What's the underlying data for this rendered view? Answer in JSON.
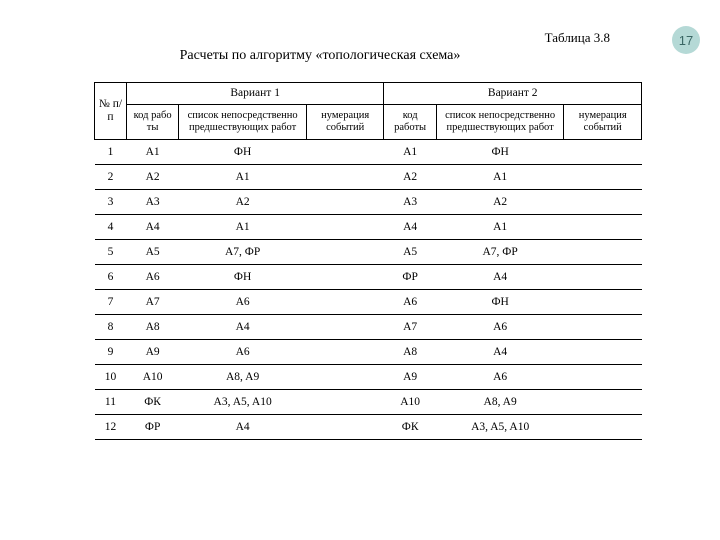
{
  "page_number": "17",
  "table_label": "Таблица 3.8",
  "table_title": "Расчеты по алгоритму «топологическая схема»",
  "header": {
    "num": "№ п/п",
    "variant1": "Вариант 1",
    "variant2": "Вариант 2",
    "code": "код рабо ты",
    "code2": "код работы",
    "preds": "список непосредственно предшествующих работ",
    "events": "нумерация событий"
  },
  "rows": [
    {
      "n": "1",
      "c1": "A1",
      "p1": "ФН",
      "e1": "",
      "c2": "A1",
      "p2": "ФН",
      "e2": ""
    },
    {
      "n": "2",
      "c1": "A2",
      "p1": "A1",
      "e1": "",
      "c2": "A2",
      "p2": "A1",
      "e2": ""
    },
    {
      "n": "3",
      "c1": "A3",
      "p1": "A2",
      "e1": "",
      "c2": "A3",
      "p2": "A2",
      "e2": ""
    },
    {
      "n": "4",
      "c1": "A4",
      "p1": "A1",
      "e1": "",
      "c2": "A4",
      "p2": "A1",
      "e2": ""
    },
    {
      "n": "5",
      "c1": "A5",
      "p1": "A7, ФР",
      "e1": "",
      "c2": "A5",
      "p2": "A7, ФР",
      "e2": ""
    },
    {
      "n": "6",
      "c1": "A6",
      "p1": "ФН",
      "e1": "",
      "c2": "ФР",
      "p2": "A4",
      "e2": ""
    },
    {
      "n": "7",
      "c1": "A7",
      "p1": "A6",
      "e1": "",
      "c2": "A6",
      "p2": "ФН",
      "e2": ""
    },
    {
      "n": "8",
      "c1": "A8",
      "p1": "A4",
      "e1": "",
      "c2": "A7",
      "p2": "A6",
      "e2": ""
    },
    {
      "n": "9",
      "c1": "A9",
      "p1": "A6",
      "e1": "",
      "c2": "A8",
      "p2": "A4",
      "e2": ""
    },
    {
      "n": "10",
      "c1": "A10",
      "p1": "A8, A9",
      "e1": "",
      "c2": "A9",
      "p2": "A6",
      "e2": ""
    },
    {
      "n": "11",
      "c1": "ФК",
      "p1": "A3, A5, A10",
      "e1": "",
      "c2": "A10",
      "p2": "A8, A9",
      "e2": ""
    },
    {
      "n": "12",
      "c1": "ФР",
      "p1": "A4",
      "e1": "",
      "c2": "ФК",
      "p2": "A3, A5, A10",
      "e2": ""
    }
  ]
}
